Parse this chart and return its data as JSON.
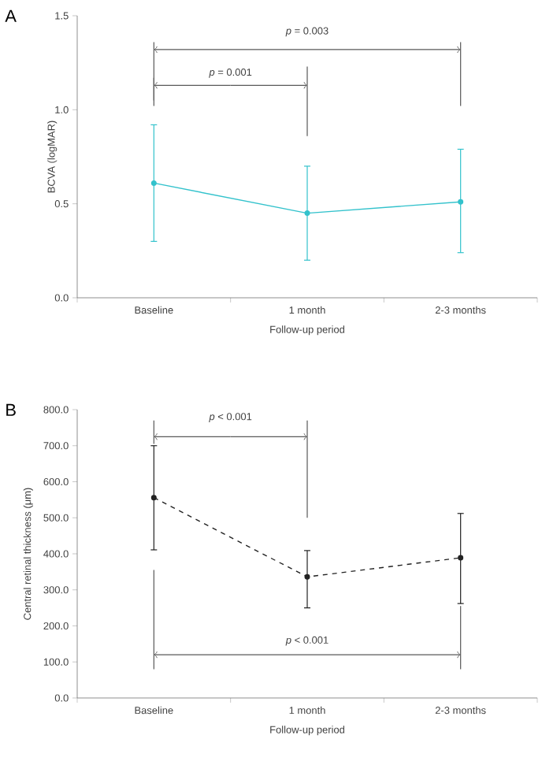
{
  "chart_data": [
    {
      "type": "line",
      "title": "A",
      "xlabel": "Follow-up period",
      "ylabel": "BCVA (logMAR)",
      "categories": [
        "Baseline",
        "1 month",
        "2-3 months"
      ],
      "series": [
        {
          "color": "#33c2cc",
          "values": [
            0.61,
            0.45,
            0.51
          ],
          "errors": [
            [
              0.3,
              0.92
            ],
            [
              0.2,
              0.7
            ],
            [
              0.24,
              0.79
            ]
          ]
        }
      ],
      "ylim": [
        0,
        1.5
      ],
      "yticks": [
        {
          "value": 0,
          "label": "0.0"
        },
        {
          "value": 0.5,
          "label": "0.5"
        },
        {
          "value": 1.0,
          "label": "1.0"
        },
        {
          "value": 1.5,
          "label": "1.5"
        }
      ],
      "marker": "circle",
      "line_style": "solid",
      "annotations": [
        "*p* = 0.003",
        "*p* = 0.001"
      ]
    },
    {
      "type": "line",
      "title": "B",
      "xlabel": "Follow-up period",
      "ylabel": "Central retinal thickness (μm)",
      "categories": [
        "Baseline",
        "1 month",
        "2-3 months"
      ],
      "series": [
        {
          "color": "#222222",
          "values": [
            556,
            336,
            389
          ],
          "errors": [
            [
              411,
              700
            ],
            [
              250,
              409
            ],
            [
              262,
              512
            ]
          ]
        }
      ],
      "ylim": [
        0,
        800
      ],
      "yticks": [
        {
          "value": 0,
          "label": "0.0"
        },
        {
          "value": 100,
          "label": "100.0"
        },
        {
          "value": 200,
          "label": "200.0"
        },
        {
          "value": 300,
          "label": "300.0"
        },
        {
          "value": 400,
          "label": "400.0"
        },
        {
          "value": 500,
          "label": "500.0"
        },
        {
          "value": 600,
          "label": "600.0"
        },
        {
          "value": 700,
          "label": "700.0"
        },
        {
          "value": 800,
          "label": "800.0"
        }
      ],
      "marker": "circle",
      "line_style": "dashed",
      "annotations": [
        "*p* < 0.001",
        "*p* < 0.001"
      ]
    }
  ]
}
